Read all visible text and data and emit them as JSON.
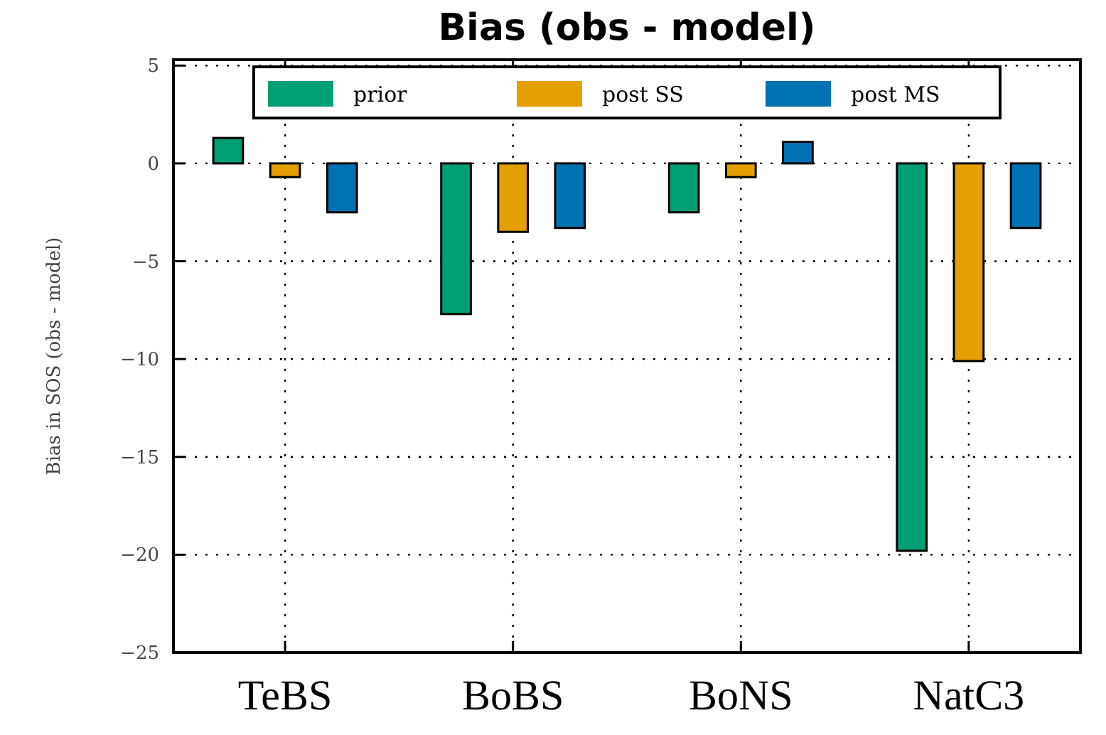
{
  "chart_data": {
    "type": "bar",
    "title": "Bias (obs - model)",
    "ylabel": "Bias in SOS (obs - model)",
    "categories": [
      "TeBS",
      "BoBS",
      "BoNS",
      "NatC3"
    ],
    "series": [
      {
        "name": "prior",
        "color": "#009e73",
        "values": [
          1.3,
          -7.7,
          -2.5,
          -19.8
        ]
      },
      {
        "name": "post SS",
        "color": "#e69f00",
        "values": [
          -0.7,
          -3.5,
          -0.7,
          -10.1
        ]
      },
      {
        "name": "post MS",
        "color": "#0072b2",
        "values": [
          -2.5,
          -3.3,
          1.1,
          -3.3
        ]
      }
    ],
    "ylim": [
      -25,
      5.3
    ],
    "yticks": [
      {
        "value": -25,
        "label": "−25"
      },
      {
        "value": -20,
        "label": "−20"
      },
      {
        "value": -15,
        "label": "−15"
      },
      {
        "value": -10,
        "label": "−10"
      },
      {
        "value": -5,
        "label": "−5"
      },
      0,
      5
    ],
    "grid": true,
    "legend": "top"
  }
}
